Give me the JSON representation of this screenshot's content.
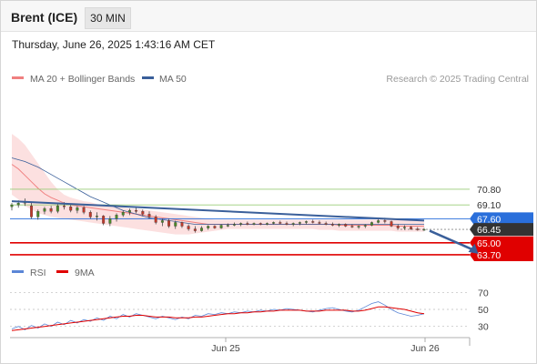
{
  "header": {
    "title": "Brent (ICE)",
    "interval": "30 MIN"
  },
  "datetime": "Thursday, June 26, 2025 1:43:16 AM CET",
  "legend": {
    "ma20": "MA 20 + Bollinger Bands",
    "ma50": "MA 50",
    "credit": "Research © 2025 Trading Central",
    "rsi": "RSI",
    "ma9": "9MA"
  },
  "colors": {
    "ma20": "#f08080",
    "bollinger_fill": "#fbdada",
    "ma50": "#3a5f9a",
    "resistance": "#9acd78",
    "pivot": "#2a6fdb",
    "current": "#333333",
    "support": "#e00000",
    "rsi": "#5b86d6",
    "rsi_ma": "#e00000",
    "candle_up": "#4a8a2a",
    "candle_down": "#c0392b"
  },
  "chart_data": [
    {
      "type": "candlestick",
      "title": "Brent (ICE)",
      "x_ticks": [
        "Jun 25",
        "Jun 26"
      ],
      "ylim": [
        63.4,
        77.5
      ],
      "levels": [
        {
          "value": 70.8,
          "label": "70.80",
          "kind": "resistance"
        },
        {
          "value": 69.1,
          "label": "69.10",
          "kind": "resistance"
        },
        {
          "value": 67.6,
          "label": "67.60",
          "kind": "pivot"
        },
        {
          "value": 66.45,
          "label": "66.45",
          "kind": "current"
        },
        {
          "value": 65.0,
          "label": "65.00",
          "kind": "support"
        },
        {
          "value": 63.7,
          "label": "63.70",
          "kind": "support"
        }
      ],
      "ohlc": [
        [
          68.9,
          69.3,
          68.5,
          69.1
        ],
        [
          69.1,
          69.6,
          68.8,
          69.3
        ],
        [
          69.3,
          69.8,
          69.0,
          69.5
        ],
        [
          69.0,
          69.4,
          67.6,
          67.8
        ],
        [
          67.8,
          68.6,
          67.5,
          68.4
        ],
        [
          68.4,
          68.9,
          68.1,
          68.7
        ],
        [
          68.7,
          69.0,
          68.2,
          68.4
        ],
        [
          68.4,
          69.2,
          68.2,
          69.0
        ],
        [
          69.0,
          69.4,
          68.6,
          68.9
        ],
        [
          68.9,
          69.1,
          68.3,
          68.5
        ],
        [
          68.5,
          69.0,
          68.2,
          68.8
        ],
        [
          68.8,
          69.0,
          68.1,
          68.3
        ],
        [
          68.3,
          68.5,
          67.6,
          67.8
        ],
        [
          67.8,
          68.3,
          67.4,
          67.9
        ],
        [
          67.9,
          68.0,
          66.9,
          67.1
        ],
        [
          67.1,
          67.9,
          66.8,
          67.6
        ],
        [
          67.6,
          68.2,
          67.3,
          68.0
        ],
        [
          68.0,
          68.5,
          67.8,
          68.3
        ],
        [
          68.3,
          68.7,
          68.0,
          68.5
        ],
        [
          68.5,
          68.8,
          68.2,
          68.4
        ],
        [
          68.4,
          68.6,
          67.9,
          68.1
        ],
        [
          68.1,
          68.4,
          67.6,
          67.8
        ],
        [
          67.8,
          68.0,
          67.0,
          67.2
        ],
        [
          67.2,
          67.6,
          66.8,
          67.4
        ],
        [
          67.4,
          67.6,
          66.6,
          66.8
        ],
        [
          66.8,
          67.4,
          66.5,
          67.2
        ],
        [
          67.2,
          67.3,
          66.6,
          66.8
        ],
        [
          66.8,
          67.0,
          66.3,
          66.5
        ],
        [
          66.5,
          66.8,
          66.1,
          66.3
        ],
        [
          66.3,
          66.8,
          66.2,
          66.6
        ],
        [
          66.6,
          66.9,
          66.4,
          66.8
        ],
        [
          66.8,
          66.9,
          66.5,
          66.6
        ],
        [
          66.6,
          67.0,
          66.5,
          66.9
        ],
        [
          66.9,
          67.1,
          66.7,
          66.9
        ],
        [
          66.9,
          67.2,
          66.8,
          67.0
        ],
        [
          67.0,
          67.2,
          66.8,
          67.1
        ],
        [
          67.1,
          67.3,
          66.9,
          67.0
        ],
        [
          67.0,
          67.2,
          66.9,
          67.1
        ],
        [
          67.1,
          67.2,
          66.9,
          67.0
        ],
        [
          67.0,
          67.2,
          66.9,
          67.1
        ],
        [
          67.1,
          67.3,
          67.0,
          67.2
        ],
        [
          67.2,
          67.4,
          67.0,
          67.1
        ],
        [
          67.1,
          67.3,
          66.9,
          67.0
        ],
        [
          67.0,
          67.2,
          66.8,
          67.1
        ],
        [
          67.1,
          67.3,
          66.9,
          67.2
        ],
        [
          67.2,
          67.4,
          67.0,
          67.3
        ],
        [
          67.3,
          67.5,
          67.1,
          67.2
        ],
        [
          67.2,
          67.4,
          67.0,
          67.1
        ],
        [
          67.1,
          67.3,
          66.9,
          67.0
        ],
        [
          67.0,
          67.2,
          66.8,
          66.9
        ],
        [
          66.9,
          67.1,
          66.7,
          67.0
        ],
        [
          67.0,
          67.1,
          66.7,
          66.8
        ],
        [
          66.8,
          67.0,
          66.6,
          66.7
        ],
        [
          66.7,
          66.9,
          66.5,
          66.8
        ],
        [
          66.8,
          67.0,
          66.6,
          66.9
        ],
        [
          66.9,
          67.3,
          66.8,
          67.2
        ],
        [
          67.2,
          67.6,
          67.1,
          67.4
        ],
        [
          67.4,
          67.7,
          67.1,
          67.3
        ],
        [
          67.3,
          67.4,
          66.7,
          66.8
        ],
        [
          66.8,
          67.0,
          66.5,
          66.6
        ],
        [
          66.6,
          66.9,
          66.4,
          66.7
        ],
        [
          66.7,
          66.8,
          66.4,
          66.5
        ],
        [
          66.5,
          66.7,
          66.3,
          66.4
        ],
        [
          66.4,
          66.6,
          66.3,
          66.45
        ]
      ],
      "ma20": [
        73.5,
        73.0,
        72.3,
        71.6,
        70.9,
        70.3,
        69.9,
        69.6,
        69.3,
        69.1,
        69.0,
        68.9,
        68.8,
        68.7,
        68.6,
        68.5,
        68.4,
        68.3,
        68.2,
        68.1,
        68.0,
        67.9,
        67.8,
        67.7,
        67.6,
        67.5,
        67.4,
        67.3,
        67.2,
        67.1,
        67.0,
        67.0,
        67.0,
        67.0,
        67.0,
        67.0,
        67.0,
        67.0,
        67.0,
        67.0,
        67.0,
        67.0,
        67.0,
        67.0,
        67.0,
        67.0,
        67.0,
        67.0,
        67.0,
        67.0,
        66.9,
        66.9,
        66.9,
        66.9,
        66.9,
        66.9,
        66.9,
        66.9,
        66.9,
        66.8,
        66.8,
        66.8,
        66.8,
        66.8
      ],
      "bb_upper": [
        76.8,
        76.3,
        75.6,
        74.6,
        73.6,
        72.6,
        71.6,
        70.8,
        70.2,
        69.9,
        69.7,
        69.5,
        69.4,
        69.2,
        69.1,
        69.0,
        68.9,
        68.8,
        68.7,
        68.7,
        68.6,
        68.5,
        68.4,
        68.3,
        68.2,
        68.1,
        68.0,
        67.9,
        67.8,
        67.7,
        67.6,
        67.5,
        67.5,
        67.5,
        67.5,
        67.5,
        67.5,
        67.5,
        67.5,
        67.5,
        67.5,
        67.5,
        67.5,
        67.5,
        67.5,
        67.5,
        67.5,
        67.5,
        67.5,
        67.5,
        67.5,
        67.5,
        67.5,
        67.5,
        67.5,
        67.5,
        67.5,
        67.5,
        67.5,
        67.5,
        67.5,
        67.5,
        67.5,
        67.5
      ],
      "bb_lower": [
        70.2,
        69.7,
        69.0,
        68.6,
        68.2,
        68.0,
        67.8,
        67.7,
        67.6,
        67.5,
        67.4,
        67.3,
        67.2,
        67.1,
        67.0,
        66.9,
        66.8,
        66.7,
        66.6,
        66.5,
        66.4,
        66.3,
        66.2,
        66.1,
        66.0,
        65.9,
        65.9,
        65.9,
        66.0,
        66.1,
        66.2,
        66.3,
        66.4,
        66.5,
        66.5,
        66.5,
        66.5,
        66.5,
        66.5,
        66.5,
        66.5,
        66.5,
        66.5,
        66.5,
        66.5,
        66.5,
        66.5,
        66.4,
        66.4,
        66.4,
        66.3,
        66.3,
        66.3,
        66.3,
        66.3,
        66.3,
        66.3,
        66.3,
        66.3,
        66.2,
        66.2,
        66.2,
        66.2,
        66.2
      ],
      "ma50": [
        74.2,
        74.0,
        73.8,
        73.5,
        73.2,
        72.8,
        72.4,
        72.0,
        71.6,
        71.2,
        70.8,
        70.4,
        70.0,
        69.7,
        69.4,
        69.1,
        68.8,
        68.5,
        68.3,
        68.1,
        67.9,
        67.7,
        67.6,
        67.5,
        67.4,
        67.3,
        67.2,
        67.1,
        67.0,
        67.0,
        67.0,
        67.0,
        67.0,
        67.0,
        67.0,
        67.0,
        67.0,
        67.0,
        67.0,
        67.0,
        67.0,
        67.0,
        67.0,
        67.0,
        67.0,
        67.0,
        67.0,
        67.0,
        67.0,
        67.0,
        67.0,
        67.0,
        67.0,
        67.0,
        67.0,
        67.0,
        67.0,
        67.0,
        67.0,
        67.0,
        67.0,
        67.0,
        67.0,
        67.0
      ],
      "trend_line": [
        [
          0,
          69.5
        ],
        [
          63,
          67.4
        ]
      ],
      "forecast_arrow": [
        [
          63,
          66.3
        ],
        [
          71,
          63.9
        ]
      ]
    },
    {
      "type": "line",
      "title": "RSI",
      "ylim": [
        20,
        80
      ],
      "y_ticks": [
        70,
        50,
        30
      ],
      "series": [
        {
          "name": "RSI",
          "values": [
            27,
            30,
            26,
            31,
            28,
            33,
            30,
            35,
            32,
            37,
            34,
            38,
            36,
            40,
            37,
            42,
            39,
            44,
            41,
            45,
            43,
            41,
            39,
            42,
            40,
            38,
            41,
            39,
            43,
            42,
            45,
            44,
            46,
            45,
            47,
            46,
            48,
            47,
            49,
            48,
            50,
            49,
            51,
            50,
            49,
            48,
            47,
            49,
            51,
            52,
            50,
            48,
            47,
            49,
            53,
            57,
            59,
            55,
            50,
            46,
            44,
            42,
            43,
            45
          ]
        },
        {
          "name": "9MA",
          "values": [
            25,
            26,
            27,
            28,
            29,
            30,
            31,
            32,
            33,
            34,
            35,
            36,
            37,
            38,
            39,
            40,
            41,
            42,
            42,
            43,
            43,
            42,
            41,
            41,
            41,
            40,
            40,
            40,
            41,
            41,
            42,
            43,
            44,
            45,
            45,
            46,
            46,
            47,
            47,
            48,
            48,
            49,
            49,
            49,
            49,
            48,
            48,
            48,
            49,
            49,
            49,
            49,
            48,
            48,
            49,
            51,
            53,
            53,
            52,
            51,
            50,
            48,
            46,
            45
          ]
        }
      ]
    }
  ]
}
